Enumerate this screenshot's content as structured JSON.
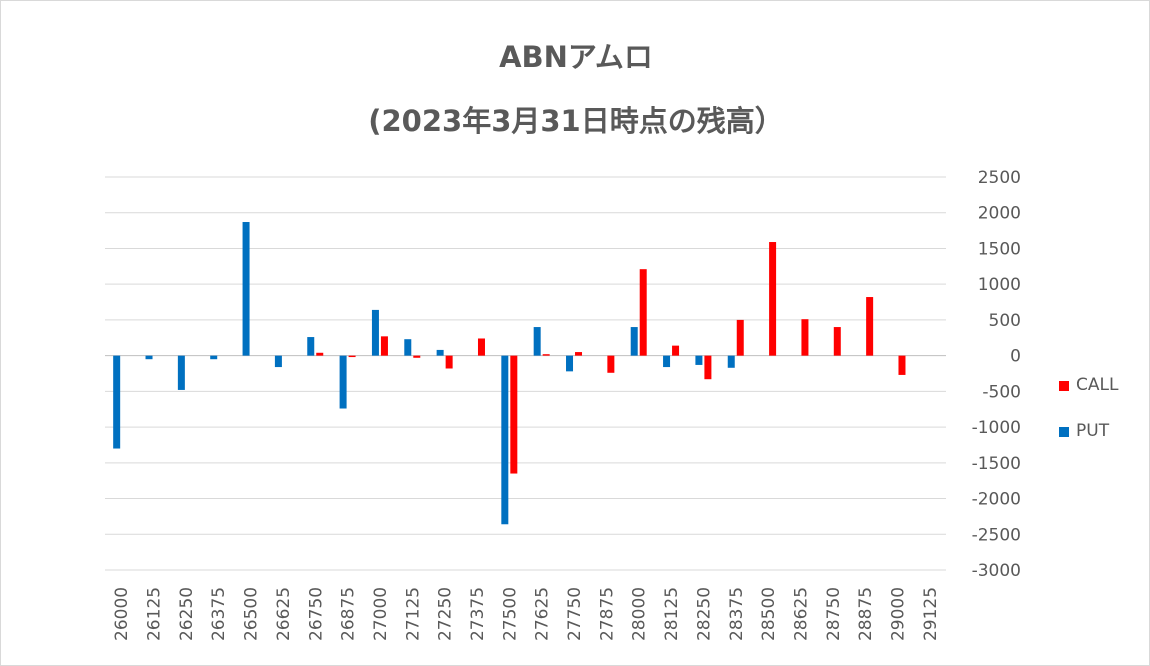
{
  "chart_data": {
    "type": "bar",
    "title": "ABNアムロ",
    "subtitle": "(2023年3月31日時点の残高）",
    "xlabel": "",
    "ylabel": "",
    "categories": [
      "26000",
      "26125",
      "26250",
      "26375",
      "26500",
      "26625",
      "26750",
      "26875",
      "27000",
      "27125",
      "27250",
      "27375",
      "27500",
      "27625",
      "27750",
      "27875",
      "28000",
      "28125",
      "28250",
      "28375",
      "28500",
      "28625",
      "28750",
      "28875",
      "29000",
      "29125"
    ],
    "series": [
      {
        "name": "PUT",
        "color": "#0070c0",
        "values": [
          -1300,
          -50,
          -480,
          -50,
          1870,
          -160,
          260,
          -740,
          640,
          230,
          80,
          0,
          -2360,
          400,
          -220,
          0,
          400,
          -160,
          -130,
          -170,
          0,
          0,
          0,
          0,
          0,
          0
        ]
      },
      {
        "name": "CALL",
        "color": "#ff0000",
        "values": [
          0,
          0,
          0,
          0,
          0,
          0,
          40,
          -20,
          270,
          -30,
          -180,
          240,
          -1650,
          20,
          50,
          -240,
          1210,
          140,
          -330,
          500,
          1590,
          510,
          400,
          820,
          -270,
          0
        ]
      }
    ],
    "ylim": [
      -3000,
      2500
    ],
    "yticks": [
      2500,
      2000,
      1500,
      1000,
      500,
      0,
      -500,
      -1000,
      -1500,
      -2000,
      -2500,
      -3000
    ],
    "ytick_labels": [
      "2500",
      "2000",
      "1500",
      "1000",
      "500",
      "0",
      "-500",
      "-1000",
      "-1500",
      "-2000",
      "-2500",
      "-3000"
    ],
    "y_axis_side": "right",
    "grid": true,
    "legend": [
      "CALL",
      "PUT"
    ],
    "legend_position": "right"
  }
}
